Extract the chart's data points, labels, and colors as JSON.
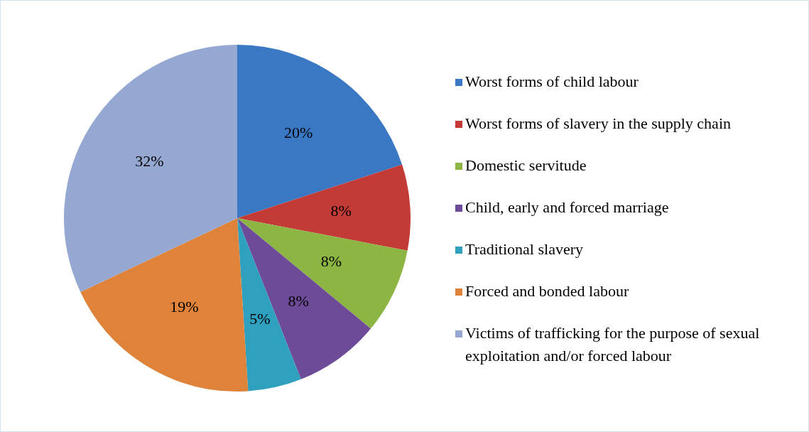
{
  "chart_data": {
    "type": "pie",
    "categories": [
      "Worst forms of child labour",
      "Worst forms of slavery in the supply chain",
      "Domestic servitude",
      "Child, early and forced marriage",
      "Traditional slavery",
      "Forced and bonded labour",
      "Victims of trafficking for the purpose of sexual exploitation and/or forced labour"
    ],
    "values": [
      20,
      8,
      8,
      8,
      5,
      19,
      32
    ],
    "colors": [
      "#3b78c4",
      "#c23b37",
      "#8db544",
      "#6e4b98",
      "#30a0bf",
      "#de8339",
      "#94a8d2"
    ],
    "value_labels": [
      "20%",
      "8%",
      "8%",
      "8%",
      "5%",
      "19%",
      "32%"
    ],
    "legend": "right"
  }
}
